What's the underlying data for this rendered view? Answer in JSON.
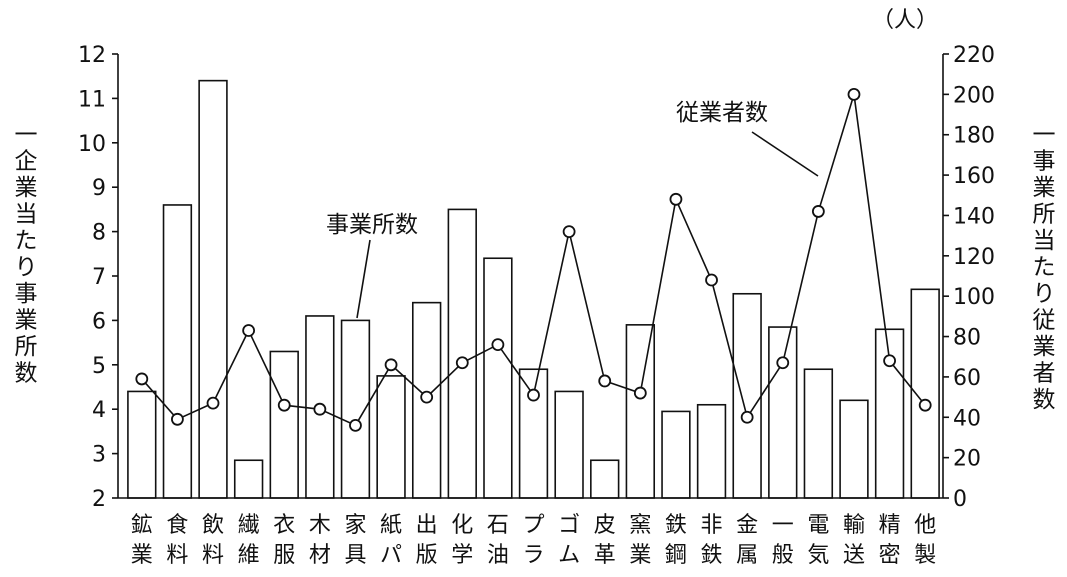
{
  "chart_data": {
    "type": "bar+line",
    "categories": [
      [
        "鉱",
        "業"
      ],
      [
        "食",
        "料"
      ],
      [
        "飲",
        "料"
      ],
      [
        "繊",
        "維"
      ],
      [
        "衣",
        "服"
      ],
      [
        "木",
        "材"
      ],
      [
        "家",
        "具"
      ],
      [
        "紙",
        "パ"
      ],
      [
        "出",
        "版"
      ],
      [
        "化",
        "学"
      ],
      [
        "石",
        "油"
      ],
      [
        "プ",
        "ラ"
      ],
      [
        "ゴ",
        "ム"
      ],
      [
        "皮",
        "革"
      ],
      [
        "窯",
        "業"
      ],
      [
        "鉄",
        "鋼"
      ],
      [
        "非",
        "鉄"
      ],
      [
        "金",
        "属"
      ],
      [
        "一",
        "般"
      ],
      [
        "電",
        "気"
      ],
      [
        "輸",
        "送"
      ],
      [
        "精",
        "密"
      ],
      [
        "他",
        "製"
      ]
    ],
    "series": [
      {
        "name": "事業所数",
        "type": "bar",
        "axis": "left",
        "values": [
          4.4,
          8.6,
          11.4,
          2.85,
          5.3,
          6.1,
          6.0,
          4.75,
          6.4,
          8.5,
          7.4,
          4.9,
          4.4,
          2.85,
          5.9,
          3.95,
          4.1,
          6.6,
          5.85,
          4.9,
          4.2,
          5.8,
          6.7
        ]
      },
      {
        "name": "従業者数",
        "type": "line",
        "axis": "right",
        "values": [
          59,
          39,
          47,
          83,
          46,
          44,
          36,
          66,
          50,
          67,
          76,
          51,
          132,
          58,
          52,
          148,
          108,
          40,
          67,
          142,
          200,
          68,
          46
        ]
      }
    ],
    "left_axis": {
      "label_chars": [
        "一",
        "企",
        "業",
        "当",
        "た",
        "り",
        "事",
        "業",
        "所",
        "数"
      ],
      "ylim": [
        2,
        12
      ],
      "ticks": [
        "2",
        "3",
        "4",
        "5",
        "6",
        "7",
        "8",
        "9",
        "10",
        "11",
        "12"
      ]
    },
    "right_axis": {
      "label_chars": [
        "一",
        "事",
        "業",
        "所",
        "当",
        "た",
        "り",
        "従",
        "業",
        "者",
        "数"
      ],
      "unit": "（人）",
      "ylim": [
        0,
        220
      ],
      "ticks": [
        "0",
        "20",
        "40",
        "60",
        "80",
        "100",
        "120",
        "140",
        "160",
        "180",
        "200",
        "220"
      ]
    },
    "grid": false,
    "annotations": {
      "bar_label": "事業所数",
      "line_label": "従業者数"
    }
  }
}
